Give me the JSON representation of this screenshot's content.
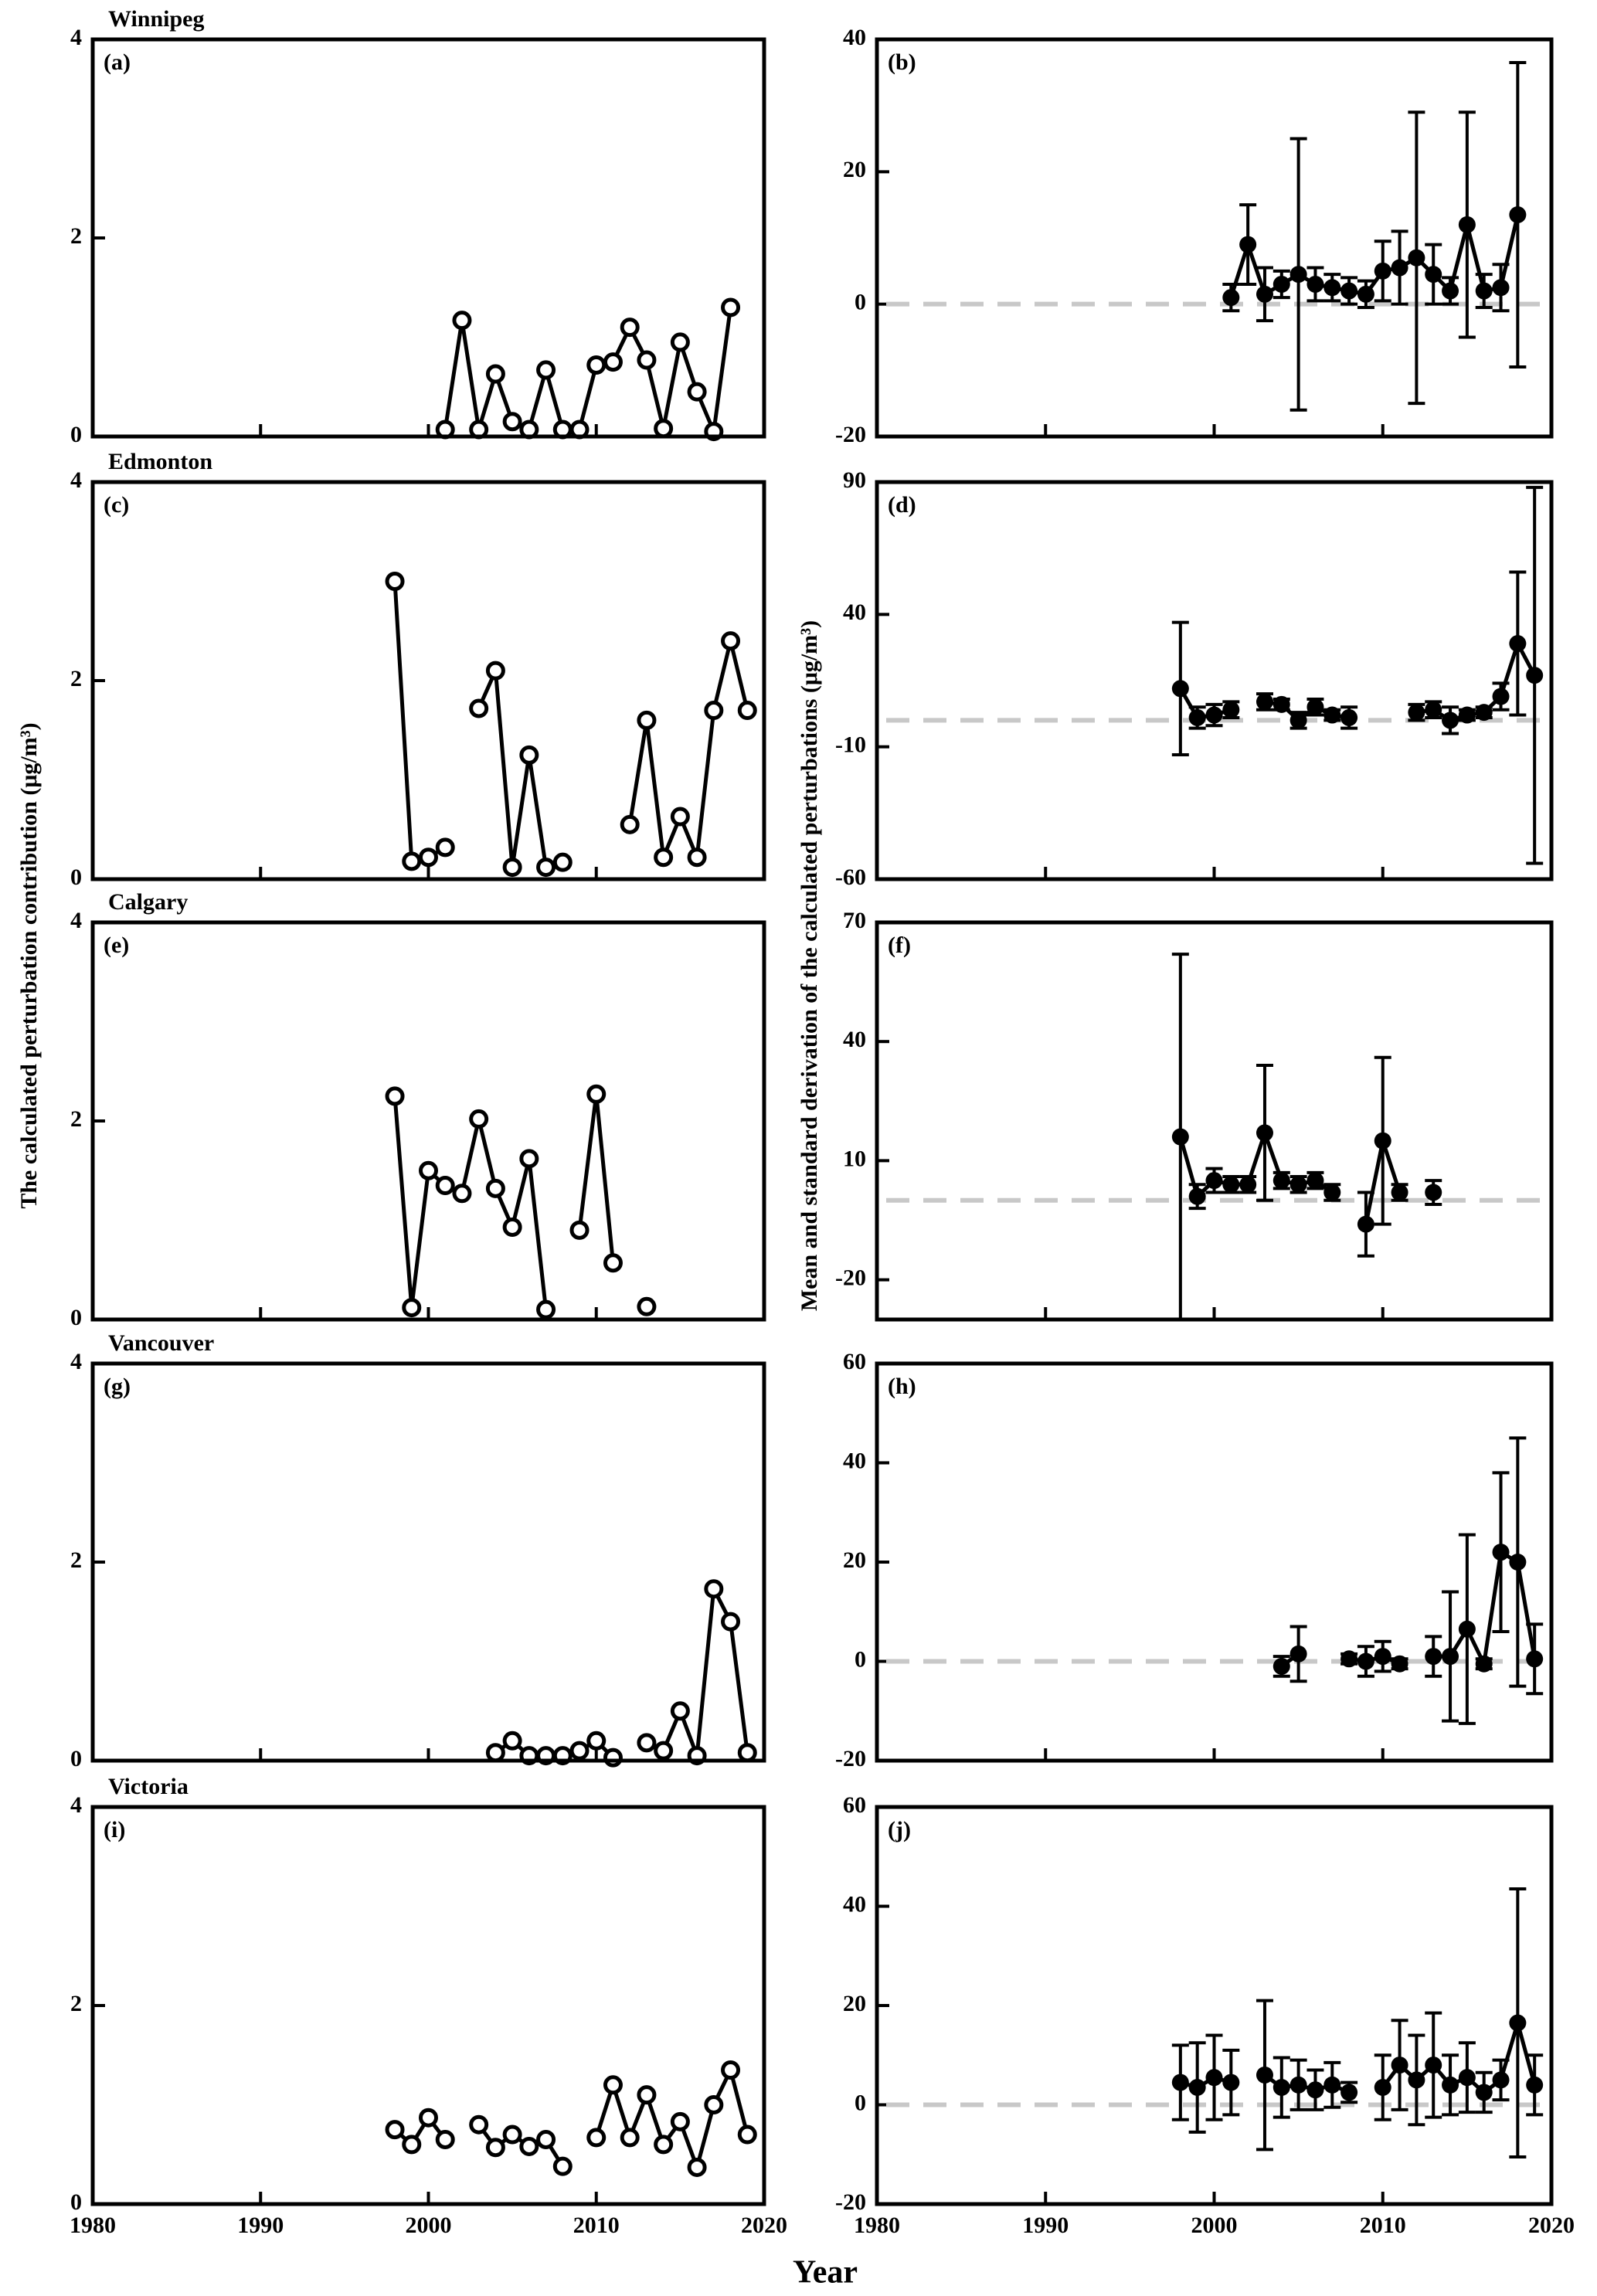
{
  "chart_data": [
    {
      "type": "line",
      "title": "Winnipeg",
      "label": "(a)",
      "ylabel": "The calculated perturbation contribution (μg/m³)",
      "color": "#000000",
      "x": [
        2001,
        2002,
        2003,
        2004,
        2005,
        2006,
        2007,
        2008,
        2009,
        2010,
        2011,
        2012,
        2013,
        2014,
        2015,
        2016,
        2017,
        2018
      ],
      "values": [
        0.07,
        1.17,
        0.07,
        0.63,
        0.15,
        0.07,
        0.67,
        0.07,
        0.07,
        0.72,
        0.75,
        1.1,
        0.77,
        0.08,
        0.95,
        0.45,
        0.05,
        1.3
      ],
      "xlim": [
        1980,
        2020
      ],
      "xticks": [
        1980,
        1990,
        2000,
        2010,
        2020
      ],
      "ylim": [
        0,
        4
      ],
      "yticks": [
        0,
        2,
        4
      ]
    },
    {
      "type": "errorbar",
      "label": "(b)",
      "ylabel": "Mean and standard derivation of the calculated perturbations (μg/m³)",
      "color": "#000000",
      "hline": 0,
      "hline_color": "#c8c8c8",
      "x": [
        2001,
        2002,
        2003,
        2004,
        2005,
        2006,
        2007,
        2008,
        2009,
        2010,
        2011,
        2012,
        2013,
        2014,
        2015,
        2016,
        2017,
        2018
      ],
      "values": [
        1,
        9,
        1.5,
        3,
        4.5,
        3,
        2.5,
        2,
        1.5,
        5,
        5.5,
        7,
        4.5,
        2,
        12,
        2,
        2.5,
        13.5
      ],
      "errors": [
        2,
        6,
        4,
        2,
        20.5,
        2.5,
        2,
        2,
        2,
        4.5,
        5.5,
        22,
        4.5,
        2,
        17,
        2.5,
        3.5,
        23
      ],
      "xlim": [
        1980,
        2020
      ],
      "xticks": [
        1980,
        1990,
        2000,
        2010,
        2020
      ],
      "ylim": [
        -20,
        40
      ],
      "yticks": [
        -20,
        0,
        20,
        40
      ]
    },
    {
      "type": "line",
      "title": "Edmonton",
      "label": "(c)",
      "color": "#000000",
      "x": [
        1998,
        1999,
        2000,
        2001,
        2002,
        2003,
        2004,
        2005,
        2006,
        2007,
        2008,
        2009,
        2010,
        2011,
        2012,
        2013,
        2014,
        2015,
        2016,
        2017,
        2018,
        2019
      ],
      "values": [
        3.0,
        0.18,
        0.22,
        0.32,
        null,
        1.72,
        2.1,
        0.12,
        1.25,
        0.12,
        0.17,
        null,
        null,
        null,
        0.55,
        1.6,
        0.22,
        0.63,
        0.22,
        1.7,
        2.4,
        1.7
      ],
      "xlim": [
        1980,
        2020
      ],
      "xticks": [
        1980,
        1990,
        2000,
        2010,
        2020
      ],
      "ylim": [
        0,
        4
      ],
      "yticks": [
        0,
        2,
        4
      ]
    },
    {
      "type": "errorbar",
      "label": "(d)",
      "color": "#000000",
      "hline": 0,
      "hline_color": "#c8c8c8",
      "x": [
        1998,
        1999,
        2000,
        2001,
        2002,
        2003,
        2004,
        2005,
        2006,
        2007,
        2008,
        2009,
        2010,
        2011,
        2012,
        2013,
        2014,
        2015,
        2016,
        2017,
        2018,
        2019
      ],
      "values": [
        12,
        1,
        2,
        4,
        null,
        7,
        6,
        0,
        5,
        2,
        1,
        null,
        null,
        null,
        3,
        4,
        0,
        2,
        3,
        9,
        29,
        17
      ],
      "errors": [
        25,
        4,
        4,
        3,
        null,
        3,
        2,
        3,
        3,
        2,
        4,
        null,
        null,
        null,
        3,
        3,
        5,
        2,
        2,
        5,
        27,
        71
      ],
      "xlim": [
        1980,
        2020
      ],
      "xticks": [
        1980,
        1990,
        2000,
        2010,
        2020
      ],
      "ylim": [
        -60,
        90
      ],
      "yticks": [
        -60,
        -10,
        40,
        90
      ]
    },
    {
      "type": "line",
      "title": "Calgary",
      "label": "(e)",
      "color": "#000000",
      "x": [
        1998,
        1999,
        2000,
        2001,
        2002,
        2003,
        2004,
        2005,
        2006,
        2007,
        2008,
        2009,
        2010,
        2011,
        2012,
        2013
      ],
      "values": [
        2.25,
        0.12,
        1.5,
        1.35,
        1.27,
        2.02,
        1.32,
        0.93,
        1.62,
        0.1,
        null,
        0.9,
        2.27,
        0.57,
        null,
        0.13
      ],
      "xlim": [
        1980,
        2020
      ],
      "xticks": [
        1980,
        1990,
        2000,
        2010,
        2020
      ],
      "ylim": [
        0,
        4
      ],
      "yticks": [
        0,
        2,
        4
      ]
    },
    {
      "type": "errorbar",
      "label": "(f)",
      "color": "#000000",
      "hline": 0,
      "hline_color": "#c8c8c8",
      "x": [
        1998,
        1999,
        2000,
        2001,
        2002,
        2003,
        2004,
        2005,
        2006,
        2007,
        2008,
        2009,
        2010,
        2011,
        2012,
        2013
      ],
      "values": [
        16,
        1,
        5,
        4,
        4,
        17,
        5,
        4,
        5,
        2,
        null,
        -6,
        15,
        2,
        null,
        2
      ],
      "errors": [
        46,
        3,
        3,
        2,
        2,
        17,
        2,
        2,
        2,
        2,
        null,
        8,
        21,
        2,
        null,
        3
      ],
      "xlim": [
        1980,
        2020
      ],
      "xticks": [
        1980,
        1990,
        2000,
        2010,
        2020
      ],
      "ylim": [
        -30,
        70
      ],
      "yticks": [
        -20,
        10,
        40,
        70
      ]
    },
    {
      "type": "line",
      "title": "Vancouver",
      "label": "(g)",
      "color": "#000000",
      "x": [
        2004,
        2005,
        2006,
        2007,
        2008,
        2009,
        2010,
        2011,
        2012,
        2013,
        2014,
        2015,
        2016,
        2017,
        2018,
        2019
      ],
      "values": [
        0.08,
        0.2,
        0.05,
        0.05,
        0.05,
        0.1,
        0.2,
        0.03,
        null,
        0.18,
        0.1,
        0.5,
        0.05,
        1.73,
        1.4,
        0.08
      ],
      "xlim": [
        1980,
        2020
      ],
      "xticks": [
        1980,
        1990,
        2000,
        2010,
        2020
      ],
      "ylim": [
        0,
        4
      ],
      "yticks": [
        0,
        2,
        4
      ]
    },
    {
      "type": "errorbar",
      "label": "(h)",
      "color": "#000000",
      "hline": 0,
      "hline_color": "#c8c8c8",
      "x": [
        2004,
        2005,
        2006,
        2007,
        2008,
        2009,
        2010,
        2011,
        2012,
        2013,
        2014,
        2015,
        2016,
        2017,
        2018,
        2019
      ],
      "values": [
        -1,
        1.5,
        null,
        null,
        0.5,
        0,
        1,
        -0.5,
        null,
        1,
        1,
        6.5,
        -0.5,
        22,
        20,
        0.5
      ],
      "errors": [
        2,
        5.5,
        null,
        null,
        1,
        3,
        3,
        1,
        null,
        4,
        13,
        19,
        1,
        16,
        25,
        7
      ],
      "xlim": [
        1980,
        2020
      ],
      "xticks": [
        1980,
        1990,
        2000,
        2010,
        2020
      ],
      "ylim": [
        -20,
        60
      ],
      "yticks": [
        -20,
        0,
        20,
        40,
        60
      ]
    },
    {
      "type": "line",
      "title": "Victoria",
      "label": "(i)",
      "xlabel": "Year",
      "color": "#000000",
      "x": [
        1998,
        1999,
        2000,
        2001,
        2002,
        2003,
        2004,
        2005,
        2006,
        2007,
        2008,
        2009,
        2010,
        2011,
        2012,
        2013,
        2014,
        2015,
        2016,
        2017,
        2018,
        2019
      ],
      "values": [
        0.75,
        0.6,
        0.87,
        0.65,
        null,
        0.8,
        0.57,
        0.7,
        0.58,
        0.65,
        0.38,
        null,
        0.67,
        1.2,
        0.67,
        1.1,
        0.6,
        0.83,
        0.37,
        1.0,
        1.35,
        0.7
      ],
      "xlim": [
        1980,
        2020
      ],
      "xticks": [
        1980,
        1990,
        2000,
        2010,
        2020
      ],
      "ylim": [
        0,
        4
      ],
      "yticks": [
        0,
        2,
        4
      ]
    },
    {
      "type": "errorbar",
      "label": "(j)",
      "color": "#000000",
      "hline": 0,
      "hline_color": "#c8c8c8",
      "x": [
        1998,
        1999,
        2000,
        2001,
        2002,
        2003,
        2004,
        2005,
        2006,
        2007,
        2008,
        2009,
        2010,
        2011,
        2012,
        2013,
        2014,
        2015,
        2016,
        2017,
        2018,
        2019
      ],
      "values": [
        4.5,
        3.5,
        5.5,
        4.5,
        null,
        6,
        3.5,
        4,
        3,
        4,
        2.5,
        null,
        3.5,
        8,
        5,
        8,
        4,
        5.5,
        2.5,
        5,
        16.5,
        4
      ],
      "errors": [
        7.5,
        9,
        8.5,
        6.5,
        null,
        15,
        6,
        5,
        4,
        4.5,
        2,
        null,
        6.5,
        9,
        9,
        10.5,
        6,
        7,
        4,
        4,
        27,
        6
      ],
      "xlim": [
        1980,
        2020
      ],
      "xticks": [
        1980,
        1990,
        2000,
        2010,
        2020
      ],
      "ylim": [
        -20,
        60
      ],
      "yticks": [
        -20,
        0,
        20,
        40,
        60
      ]
    }
  ]
}
